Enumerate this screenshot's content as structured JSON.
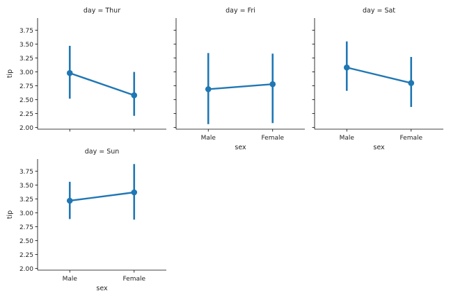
{
  "chart_data": {
    "type": "line",
    "plot_kind": "point plot with error bars",
    "facet_variable": "day",
    "xlabel": "sex",
    "ylabel": "tip",
    "categories": [
      "Male",
      "Female"
    ],
    "ylim": [
      1.97,
      3.97
    ],
    "yticks": [
      "2.00",
      "2.25",
      "2.50",
      "2.75",
      "3.00",
      "3.25",
      "3.50",
      "3.75"
    ],
    "grid": false,
    "color": "#1f77b4",
    "panels": [
      {
        "title": "day = Thur",
        "values": [
          2.98,
          2.58
        ],
        "error_low": [
          2.52,
          2.21
        ],
        "error_high": [
          3.47,
          3.0
        ],
        "show_x_ticklabels": false,
        "show_xlabel": false,
        "show_y_ticklabels": true,
        "show_ylabel": true
      },
      {
        "title": "day = Fri",
        "values": [
          2.69,
          2.78
        ],
        "error_low": [
          2.06,
          2.08
        ],
        "error_high": [
          3.34,
          3.33
        ],
        "show_x_ticklabels": true,
        "show_xlabel": true,
        "show_y_ticklabels": false,
        "show_ylabel": false
      },
      {
        "title": "day = Sat",
        "values": [
          3.08,
          2.8
        ],
        "error_low": [
          2.66,
          2.37
        ],
        "error_high": [
          3.55,
          3.27
        ],
        "show_x_ticklabels": true,
        "show_xlabel": true,
        "show_y_ticklabels": false,
        "show_ylabel": false
      },
      {
        "title": "day = Sun",
        "values": [
          3.22,
          3.37
        ],
        "error_low": [
          2.89,
          2.88
        ],
        "error_high": [
          3.56,
          3.88
        ],
        "show_x_ticklabels": true,
        "show_xlabel": true,
        "show_y_ticklabels": true,
        "show_ylabel": true
      }
    ]
  }
}
